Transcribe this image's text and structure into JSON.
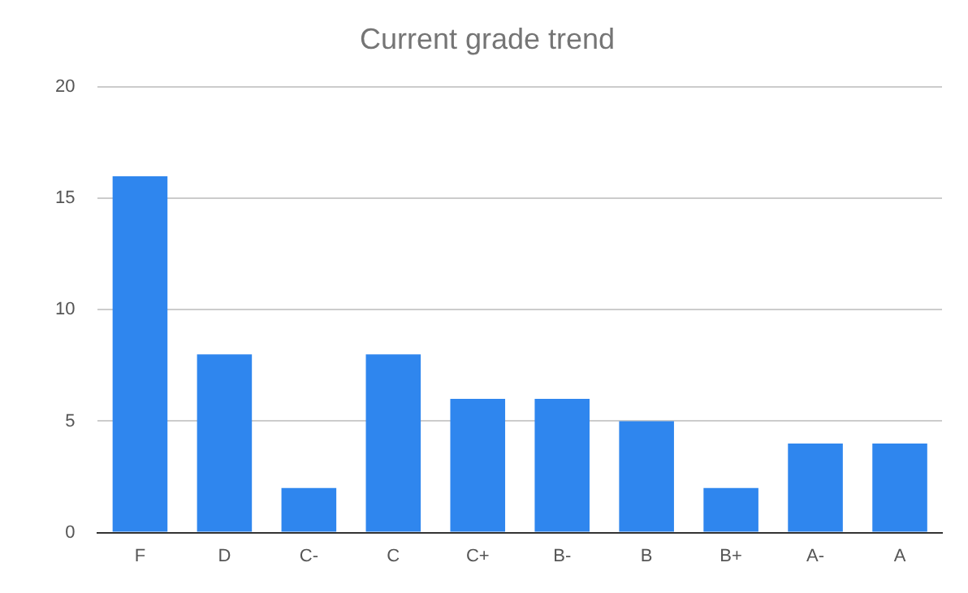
{
  "chart_data": {
    "type": "bar",
    "title": "Current grade trend",
    "categories": [
      "F",
      "D",
      "C-",
      "C",
      "C+",
      "B-",
      "B",
      "B+",
      "A-",
      "A"
    ],
    "values": [
      16,
      8,
      2,
      8,
      6,
      6,
      5,
      2,
      4,
      4
    ],
    "color": "#2f86ee",
    "ylim": [
      0,
      20
    ],
    "yticks": [
      0,
      5,
      10,
      15,
      20
    ],
    "grid": "y",
    "legend": false
  }
}
